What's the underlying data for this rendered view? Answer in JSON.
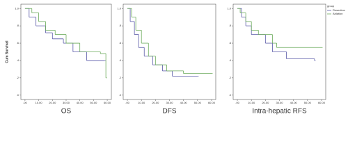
{
  "chart_data": [
    {
      "type": "step",
      "title": "OS",
      "ylabel": "Cum Survival",
      "xlim": [
        -3,
        63
      ],
      "ylim": [
        -0.05,
        1.05
      ],
      "xticks": [
        {
          "value": 0,
          "label": ".00"
        },
        {
          "value": 10,
          "label": "10.00"
        },
        {
          "value": 20,
          "label": "20.00"
        },
        {
          "value": 30,
          "label": "30.00"
        },
        {
          "value": 40,
          "label": "40.00"
        },
        {
          "value": 50,
          "label": "50.00"
        },
        {
          "value": 60,
          "label": "60.00"
        }
      ],
      "yticks": [
        {
          "value": 0,
          "label": ".0"
        },
        {
          "value": 0.2,
          "label": ".2"
        },
        {
          "value": 0.4,
          "label": ".4"
        },
        {
          "value": 0.6,
          "label": ".6"
        },
        {
          "value": 0.8,
          "label": ".8"
        },
        {
          "value": 1.0,
          "label": "1.0"
        }
      ],
      "series": [
        {
          "color": "#5a5aa8",
          "x": [
            0,
            3,
            8,
            15,
            20,
            28,
            35,
            45,
            58
          ],
          "values": [
            1.0,
            0.9,
            0.8,
            0.72,
            0.65,
            0.6,
            0.5,
            0.4,
            0.4
          ]
        },
        {
          "color": "#6aaa5a",
          "x": [
            0,
            5,
            10,
            15,
            22,
            30,
            40,
            55,
            59
          ],
          "values": [
            1.0,
            0.95,
            0.85,
            0.75,
            0.7,
            0.6,
            0.5,
            0.48,
            0.2
          ]
        }
      ]
    },
    {
      "type": "step",
      "title": "DFS",
      "xlim": [
        -3,
        63
      ],
      "ylim": [
        -0.05,
        1.05
      ],
      "xticks": [
        {
          "value": 0,
          "label": ".00"
        },
        {
          "value": 10,
          "label": "10.00"
        },
        {
          "value": 20,
          "label": "20.00"
        },
        {
          "value": 30,
          "label": "30.00"
        },
        {
          "value": 40,
          "label": "40.00"
        },
        {
          "value": 50,
          "label": "50.00"
        },
        {
          "value": 60,
          "label": "60.00"
        }
      ],
      "yticks": [
        {
          "value": 0,
          "label": ".0"
        },
        {
          "value": 0.2,
          "label": ".2"
        },
        {
          "value": 0.4,
          "label": ".4"
        },
        {
          "value": 0.6,
          "label": ".6"
        },
        {
          "value": 0.8,
          "label": ".8"
        },
        {
          "value": 1.0,
          "label": "1.0"
        }
      ],
      "series": [
        {
          "color": "#5a5aa8",
          "x": [
            0,
            2,
            5,
            8,
            12,
            18,
            25,
            32,
            50
          ],
          "values": [
            1.0,
            0.85,
            0.7,
            0.55,
            0.45,
            0.35,
            0.28,
            0.22,
            0.22
          ]
        },
        {
          "color": "#6aaa5a",
          "x": [
            0,
            3,
            6,
            10,
            15,
            20,
            28,
            40,
            60
          ],
          "values": [
            1.0,
            0.9,
            0.75,
            0.6,
            0.45,
            0.35,
            0.28,
            0.25,
            0.25
          ]
        }
      ]
    },
    {
      "type": "step",
      "title": "Intra-hepatic RFS",
      "legend_title": "group",
      "xlim": [
        -3,
        63
      ],
      "ylim": [
        -0.05,
        1.05
      ],
      "xticks": [
        {
          "value": 0,
          "label": ".00"
        },
        {
          "value": 10,
          "label": "10.00"
        },
        {
          "value": 20,
          "label": "20.00"
        },
        {
          "value": 30,
          "label": "30.00"
        },
        {
          "value": 40,
          "label": "40.00"
        },
        {
          "value": 50,
          "label": "50.00"
        },
        {
          "value": 60,
          "label": "60.00"
        }
      ],
      "yticks": [
        {
          "value": 0,
          "label": ".0"
        },
        {
          "value": 0.2,
          "label": ".2"
        },
        {
          "value": 0.4,
          "label": ".4"
        },
        {
          "value": 0.6,
          "label": ".6"
        },
        {
          "value": 0.8,
          "label": ".8"
        },
        {
          "value": 1.0,
          "label": "1.0"
        }
      ],
      "series": [
        {
          "name": "Resection",
          "color": "#5a5aa8",
          "x": [
            0,
            3,
            6,
            10,
            20,
            25,
            35,
            55
          ],
          "values": [
            1.0,
            0.9,
            0.8,
            0.7,
            0.6,
            0.5,
            0.42,
            0.4
          ]
        },
        {
          "name": "Ablation",
          "color": "#6aaa5a",
          "x": [
            0,
            2,
            6,
            10,
            15,
            25,
            28,
            60
          ],
          "values": [
            1.0,
            0.95,
            0.85,
            0.75,
            0.7,
            0.6,
            0.55,
            0.55
          ]
        }
      ]
    }
  ]
}
